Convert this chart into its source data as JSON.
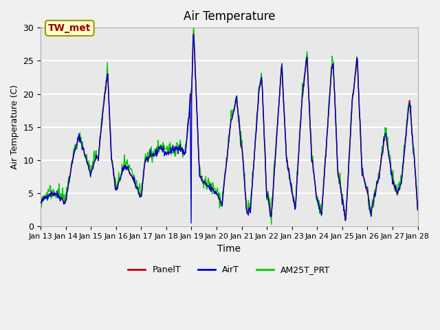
{
  "title": "Air Temperature",
  "xlabel": "Time",
  "ylabel": "Air Temperature (C)",
  "ylim": [
    0,
    30
  ],
  "xlim_start": 0,
  "xlim_end": 15,
  "x_tick_labels": [
    "Jan 13",
    "Jan 14",
    "Jan 15",
    "Jan 16",
    "Jan 17",
    "Jan 18",
    "Jan 19",
    "Jan 20",
    "Jan 21",
    "Jan 22",
    "Jan 23",
    "Jan 24",
    "Jan 25",
    "Jan 26",
    "Jan 27",
    "Jan 28"
  ],
  "annotation_text": "TW_met",
  "annotation_text_color": "#990000",
  "annotation_box_facecolor": "#ffffcc",
  "annotation_box_edgecolor": "#999900",
  "panel_color": "#cc0000",
  "air_color": "#0000cc",
  "am25_color": "#00cc00",
  "legend_labels": [
    "PanelT",
    "AirT",
    "AM25T_PRT"
  ],
  "bg_color": "#e8e8e8",
  "grid_color": "#ffffff",
  "linewidth": 1.0
}
